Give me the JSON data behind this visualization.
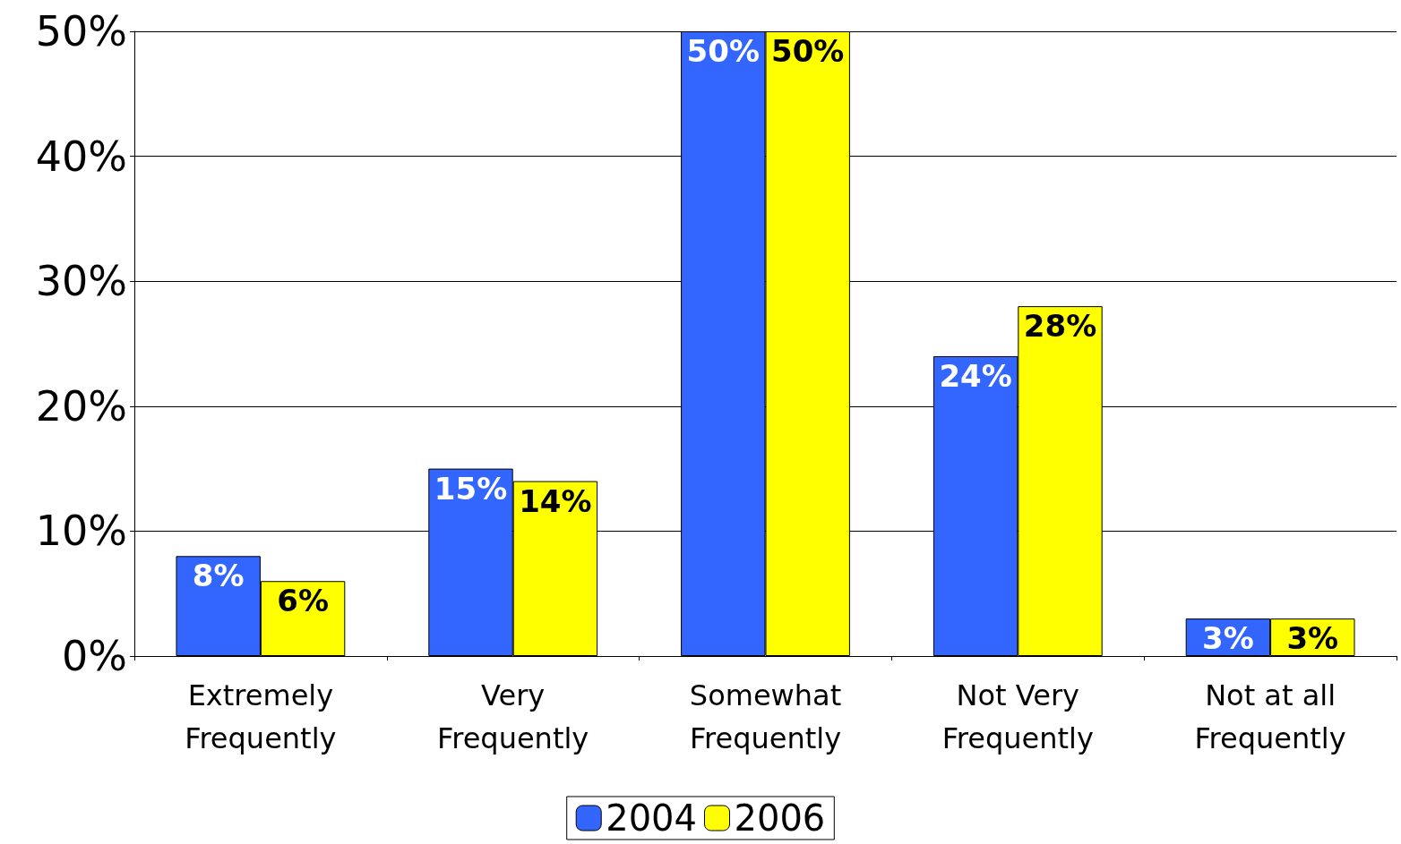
{
  "chart_data": {
    "type": "bar",
    "categories": [
      "Extremely\nFrequently",
      "Very\nFrequently",
      "Somewhat\nFrequently",
      "Not Very\nFrequently",
      "Not at all\nFrequently"
    ],
    "series": [
      {
        "name": "2004",
        "color": "#3366ff",
        "values": [
          8,
          15,
          50,
          24,
          3
        ],
        "value_labels": [
          "8%",
          "15%",
          "50%",
          "24%",
          "3%"
        ]
      },
      {
        "name": "2006",
        "color": "#ffff00",
        "values": [
          6,
          14,
          50,
          28,
          3
        ],
        "value_labels": [
          "6%",
          "14%",
          "50%",
          "28%",
          "3%"
        ]
      }
    ],
    "ylim": [
      0,
      50
    ],
    "yticks": [
      {
        "value": 0,
        "label": "0%"
      },
      {
        "value": 10,
        "label": "10%"
      },
      {
        "value": 20,
        "label": "20%"
      },
      {
        "value": 30,
        "label": "30%"
      },
      {
        "value": 40,
        "label": "40%"
      },
      {
        "value": 50,
        "label": "50%"
      }
    ],
    "grid": "y",
    "legend": "bottom"
  }
}
